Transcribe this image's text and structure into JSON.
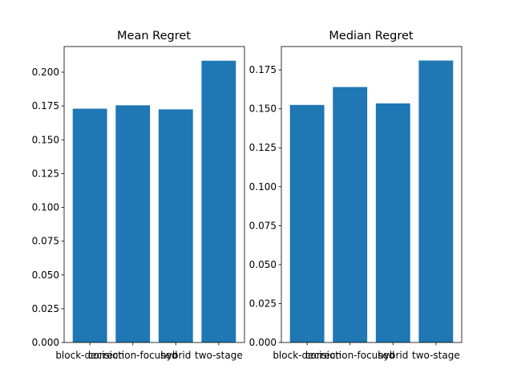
{
  "chart_data": [
    {
      "type": "bar",
      "title": "Mean Regret",
      "categories": [
        "block-decision",
        "correction-focused",
        "hybrid",
        "two-stage"
      ],
      "values": [
        0.173,
        0.1755,
        0.1725,
        0.2085
      ],
      "ylim": [
        0,
        0.219
      ],
      "yticks": [
        0.0,
        0.025,
        0.05,
        0.075,
        0.1,
        0.125,
        0.15,
        0.175,
        0.2
      ],
      "ytick_labels": [
        "0.000",
        "0.025",
        "0.050",
        "0.075",
        "0.100",
        "0.125",
        "0.150",
        "0.175",
        "0.200"
      ],
      "bar_color": "#1f77b4"
    },
    {
      "type": "bar",
      "title": "Median Regret",
      "categories": [
        "block-decision",
        "correction-focused",
        "hybrid",
        "two-stage"
      ],
      "values": [
        0.1525,
        0.164,
        0.1535,
        0.181
      ],
      "ylim": [
        0,
        0.19
      ],
      "yticks": [
        0.0,
        0.025,
        0.05,
        0.075,
        0.1,
        0.125,
        0.15,
        0.175
      ],
      "ytick_labels": [
        "0.000",
        "0.025",
        "0.050",
        "0.075",
        "0.100",
        "0.125",
        "0.150",
        "0.175"
      ],
      "bar_color": "#1f77b4"
    }
  ]
}
